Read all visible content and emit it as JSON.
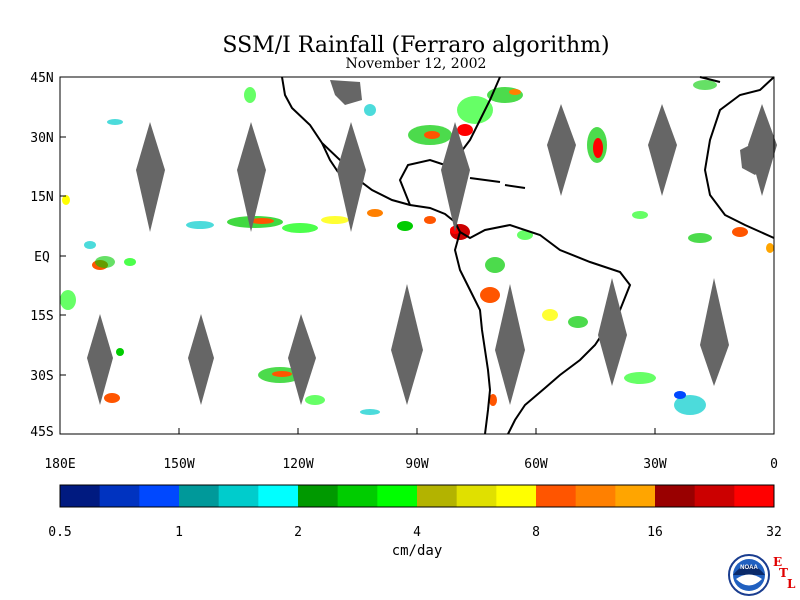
{
  "title": "SSM/I Rainfall (Ferraro algorithm)",
  "date": "November 12, 2002",
  "map": {
    "lat_labels": [
      "45N",
      "30N",
      "15N",
      "EQ",
      "15S",
      "30S",
      "45S"
    ],
    "lon_labels": [
      "180E",
      "150W",
      "120W",
      "90W",
      "60W",
      "30W",
      "0"
    ]
  },
  "colorbar": {
    "ticks": [
      "0.5",
      "1",
      "2",
      "4",
      "8",
      "16",
      "32"
    ],
    "unit": "cm/day",
    "colors": [
      "#001a80",
      "#0033c0",
      "#0048ff",
      "#00999a",
      "#00cccc",
      "#00ffff",
      "#009900",
      "#00cc00",
      "#00ff00",
      "#b3b300",
      "#e0e000",
      "#ffff00",
      "#ff5500",
      "#ff8000",
      "#ffa500",
      "#990000",
      "#cc0000",
      "#ff0000"
    ]
  },
  "branding": {
    "noaa_text": "NOAA",
    "etl_letters": [
      "E",
      "T",
      "L"
    ]
  },
  "colors": {
    "land_fill": "#ffffff",
    "coast": "#000000",
    "swath_gap": "#666666"
  }
}
